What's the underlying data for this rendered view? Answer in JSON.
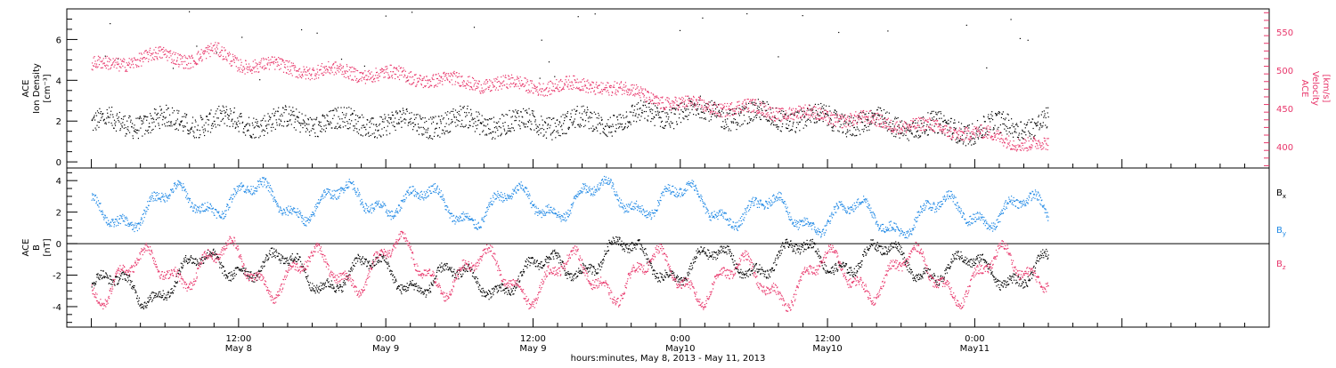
{
  "chart_data": [
    {
      "type": "scatter",
      "ylabel_left": [
        "ACE",
        "Ion Density",
        "[cm⁻³]"
      ],
      "ylabel_right": [
        "ACE",
        "Velocity",
        "[km/s]"
      ],
      "ylim_left": [
        -0.3,
        7.5
      ],
      "ylim_right": [
        372,
        580
      ],
      "yticks_left": [
        0,
        2,
        4,
        6
      ],
      "yticks_right": [
        400,
        450,
        500,
        550
      ],
      "series": [
        {
          "color": "#000000",
          "axis": "left",
          "trend_hours": [
            0,
            6,
            12,
            18,
            24,
            30,
            36,
            42,
            48,
            54,
            60,
            66,
            72,
            78
          ],
          "trend_values": [
            1.9,
            2.0,
            2.0,
            2.0,
            1.9,
            2.0,
            1.9,
            2.0,
            2.5,
            2.3,
            2.1,
            1.8,
            1.6,
            2.0
          ],
          "spread": 0.55
        },
        {
          "color": "#e8356a",
          "axis": "right",
          "trend_hours": [
            0,
            6,
            8,
            10,
            12,
            18,
            24,
            30,
            36,
            42,
            48,
            54,
            60,
            66,
            72,
            78
          ],
          "trend_values": [
            505,
            520,
            515,
            525,
            510,
            500,
            495,
            485,
            480,
            480,
            455,
            450,
            440,
            430,
            418,
            400
          ],
          "spread": 9
        }
      ]
    },
    {
      "type": "scatter",
      "ylabel_left": [
        "ACE",
        "B",
        "[nT]"
      ],
      "ylim": [
        -5.3,
        4.8
      ],
      "yticks": [
        -4,
        -2,
        0,
        2,
        4
      ],
      "zero_line": true,
      "series": [
        {
          "label": "B",
          "sub": "x",
          "color": "#000000",
          "trend_hours": [
            0,
            4,
            8,
            12,
            18,
            24,
            30,
            36,
            42,
            48,
            54,
            60,
            66,
            72,
            78
          ],
          "trend_values": [
            -2.8,
            -3.0,
            -1.8,
            -1.0,
            -2.0,
            -1.8,
            -2.5,
            -2.0,
            -0.5,
            -1.5,
            -1.0,
            -0.8,
            -1.0,
            -1.8,
            -1.5
          ],
          "amplitude": 1.3
        },
        {
          "label": "B",
          "sub": "y",
          "color": "#1e88e5",
          "trend_hours": [
            0,
            4,
            8,
            12,
            18,
            24,
            30,
            36,
            42,
            48,
            54,
            60,
            66,
            72,
            78
          ],
          "trend_values": [
            1.8,
            2.2,
            2.8,
            3.0,
            2.5,
            3.0,
            2.2,
            2.6,
            3.0,
            2.8,
            2.0,
            1.8,
            1.6,
            2.2,
            2.0
          ],
          "amplitude": 1.3
        },
        {
          "label": "B",
          "sub": "z",
          "color": "#e8356a",
          "trend_hours": [
            0,
            4,
            8,
            12,
            18,
            24,
            30,
            36,
            42,
            48,
            54,
            60,
            66,
            72,
            78
          ],
          "trend_values": [
            -2.2,
            -2.0,
            -1.0,
            -1.5,
            -2.0,
            -1.0,
            -1.8,
            -2.2,
            -2.0,
            -2.0,
            -2.5,
            -2.0,
            -1.8,
            -2.2,
            -1.0
          ],
          "amplitude": 1.8
        }
      ]
    }
  ],
  "x_axis": {
    "xlabel": "hours:minutes, May  8, 2013 - May 11, 2013",
    "ticks": [
      {
        "hours": 12,
        "time": "12:00",
        "date": "May 8"
      },
      {
        "hours": 24,
        "time": "0:00",
        "date": "May 9"
      },
      {
        "hours": 36,
        "time": "12:00",
        "date": "May 9"
      },
      {
        "hours": 48,
        "time": "0:00",
        "date": "May10"
      },
      {
        "hours": 60,
        "time": "12:00",
        "date": "May10"
      },
      {
        "hours": 72,
        "time": "0:00",
        "date": "May11"
      }
    ],
    "data_start_hours": 0,
    "data_end_hours": 78
  }
}
